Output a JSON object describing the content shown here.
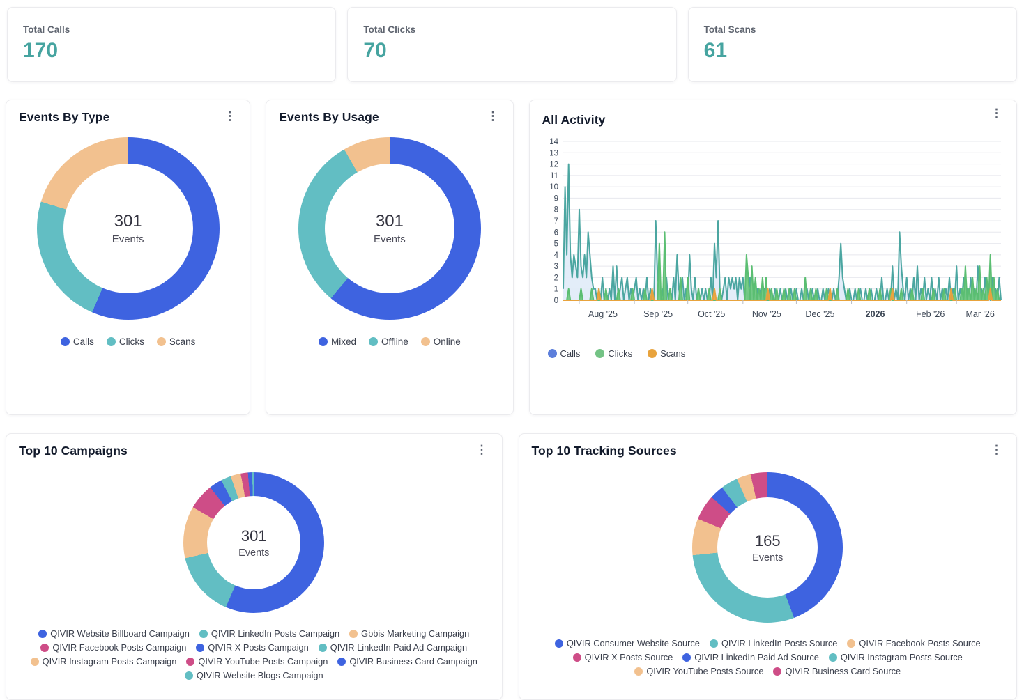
{
  "palette": {
    "blue": "#3e63e0",
    "teal": "#62bec3",
    "tan": "#f2c18f",
    "magenta": "#ce4d87",
    "accent_teal": "#46a4a0",
    "chart_teal": "#4ba6a1",
    "chart_green": "#72c884",
    "chart_orange": "#e8a33d",
    "calls_fill": "#e0ebf8",
    "legend_blue": "#5d7fdb"
  },
  "menu_icon": "⋮",
  "stat_cards": [
    {
      "label": "Total Calls",
      "value": "170"
    },
    {
      "label": "Total Clicks",
      "value": "70"
    },
    {
      "label": "Total Scans",
      "value": "61"
    }
  ],
  "events_by_type": {
    "title": "Events By Type",
    "center_value": "301",
    "center_label": "Events",
    "chart_data": {
      "type": "donut",
      "title": "Events By Type",
      "labels": [
        "Calls",
        "Clicks",
        "Scans"
      ],
      "values": [
        170,
        70,
        61
      ],
      "colors": [
        "#3e63e0",
        "#62bec3",
        "#f2c18f"
      ],
      "center_total": 301
    }
  },
  "events_by_usage": {
    "title": "Events By Usage",
    "center_value": "301",
    "center_label": "Events",
    "chart_data": {
      "type": "donut",
      "title": "Events By Usage",
      "labels": [
        "Mixed",
        "Offline",
        "Online"
      ],
      "values": [
        184,
        92,
        25
      ],
      "colors": [
        "#3e63e0",
        "#62bec3",
        "#f2c18f"
      ],
      "center_total": 301
    }
  },
  "all_activity": {
    "title": "All Activity",
    "chart_data": {
      "type": "area",
      "title": "All Activity",
      "ylim": [
        0,
        14
      ],
      "grid": true,
      "legend_position": "bottom-left",
      "x_tick_labels": [
        "Aug '25",
        "Sep '25",
        "Oct '25",
        "Nov '25",
        "Dec '25",
        "2026",
        "Feb '26",
        "Mar '26"
      ],
      "x_tick_bold_index": 5,
      "x_tick_days": [
        9,
        40,
        70,
        101,
        131,
        162,
        193,
        221
      ],
      "domain_days": 246,
      "series": [
        {
          "name": "Calls",
          "legend_color": "#5d7fdb",
          "stroke": "#4ba6a1",
          "fill": "#e0ebf8",
          "fill_opacity": 0.9,
          "points": [
            [
              0,
              1
            ],
            [
              1,
              10
            ],
            [
              2,
              4
            ],
            [
              3,
              12
            ],
            [
              4,
              4
            ],
            [
              5,
              2
            ],
            [
              6,
              4
            ],
            [
              7,
              3
            ],
            [
              8,
              2
            ],
            [
              9,
              8
            ],
            [
              10,
              3
            ],
            [
              11,
              2
            ],
            [
              12,
              4
            ],
            [
              13,
              2
            ],
            [
              14,
              6
            ],
            [
              15,
              4
            ],
            [
              16,
              2
            ],
            [
              17,
              1
            ],
            [
              18,
              1
            ],
            [
              20,
              1
            ],
            [
              22,
              2
            ],
            [
              24,
              1
            ],
            [
              26,
              1
            ],
            [
              28,
              3
            ],
            [
              30,
              3
            ],
            [
              32,
              1
            ],
            [
              33,
              2
            ],
            [
              35,
              1
            ],
            [
              36,
              2
            ],
            [
              38,
              1
            ],
            [
              40,
              1
            ],
            [
              41,
              2
            ],
            [
              43,
              1
            ],
            [
              45,
              1
            ],
            [
              47,
              2
            ],
            [
              49,
              1
            ],
            [
              52,
              7
            ],
            [
              53,
              2
            ],
            [
              54,
              1
            ],
            [
              56,
              1
            ],
            [
              58,
              2
            ],
            [
              60,
              1
            ],
            [
              62,
              2
            ],
            [
              64,
              4
            ],
            [
              65,
              1
            ],
            [
              67,
              2
            ],
            [
              69,
              1
            ],
            [
              71,
              4
            ],
            [
              72,
              1
            ],
            [
              74,
              2
            ],
            [
              76,
              1
            ],
            [
              78,
              1
            ],
            [
              80,
              1
            ],
            [
              83,
              2
            ],
            [
              85,
              5
            ],
            [
              86,
              2
            ],
            [
              87,
              7
            ],
            [
              88,
              1
            ],
            [
              90,
              1
            ],
            [
              91,
              2
            ],
            [
              93,
              2
            ],
            [
              94,
              1
            ],
            [
              95,
              2
            ],
            [
              96,
              1
            ],
            [
              97,
              2
            ],
            [
              99,
              2
            ],
            [
              100,
              1
            ],
            [
              101,
              2
            ],
            [
              103,
              1
            ],
            [
              105,
              2
            ],
            [
              107,
              1
            ],
            [
              109,
              1
            ],
            [
              111,
              1
            ],
            [
              113,
              1
            ],
            [
              116,
              1
            ],
            [
              119,
              1
            ],
            [
              122,
              1
            ],
            [
              125,
              1
            ],
            [
              128,
              1
            ],
            [
              131,
              1
            ],
            [
              134,
              1
            ],
            [
              137,
              1
            ],
            [
              140,
              1
            ],
            [
              143,
              1
            ],
            [
              146,
              1
            ],
            [
              149,
              1
            ],
            [
              152,
              1
            ],
            [
              155,
              2
            ],
            [
              156,
              5
            ],
            [
              157,
              2
            ],
            [
              158,
              1
            ],
            [
              161,
              1
            ],
            [
              164,
              1
            ],
            [
              167,
              1
            ],
            [
              170,
              1
            ],
            [
              173,
              1
            ],
            [
              176,
              1
            ],
            [
              179,
              2
            ],
            [
              182,
              1
            ],
            [
              185,
              3
            ],
            [
              187,
              1
            ],
            [
              189,
              6
            ],
            [
              190,
              3
            ],
            [
              191,
              1
            ],
            [
              193,
              2
            ],
            [
              195,
              1
            ],
            [
              197,
              2
            ],
            [
              199,
              3
            ],
            [
              201,
              1
            ],
            [
              203,
              2
            ],
            [
              205,
              1
            ],
            [
              207,
              2
            ],
            [
              209,
              1
            ],
            [
              211,
              2
            ],
            [
              213,
              1
            ],
            [
              215,
              1
            ],
            [
              217,
              2
            ],
            [
              219,
              1
            ],
            [
              221,
              3
            ],
            [
              223,
              1
            ],
            [
              225,
              2
            ],
            [
              227,
              1
            ],
            [
              229,
              2
            ],
            [
              231,
              1
            ],
            [
              233,
              3
            ],
            [
              235,
              1
            ],
            [
              237,
              2
            ],
            [
              239,
              1
            ],
            [
              241,
              2
            ],
            [
              243,
              1
            ],
            [
              245,
              2
            ]
          ]
        },
        {
          "name": "Clicks",
          "legend_color": "#74c385",
          "stroke": "#5bbe72",
          "fill": "#72c884",
          "fill_opacity": 0.95,
          "points": [
            [
              3,
              1
            ],
            [
              10,
              1
            ],
            [
              16,
              1
            ],
            [
              24,
              1
            ],
            [
              31,
              1
            ],
            [
              39,
              1
            ],
            [
              46,
              1
            ],
            [
              54,
              5
            ],
            [
              57,
              6
            ],
            [
              60,
              1
            ],
            [
              66,
              2
            ],
            [
              70,
              2
            ],
            [
              76,
              1
            ],
            [
              82,
              1
            ],
            [
              88,
              1
            ],
            [
              103,
              4
            ],
            [
              104,
              2
            ],
            [
              106,
              3
            ],
            [
              108,
              2
            ],
            [
              110,
              1
            ],
            [
              112,
              2
            ],
            [
              114,
              2
            ],
            [
              117,
              1
            ],
            [
              120,
              1
            ],
            [
              124,
              1
            ],
            [
              127,
              1
            ],
            [
              130,
              1
            ],
            [
              136,
              2
            ],
            [
              139,
              1
            ],
            [
              142,
              1
            ],
            [
              148,
              1
            ],
            [
              154,
              1
            ],
            [
              160,
              1
            ],
            [
              166,
              1
            ],
            [
              172,
              1
            ],
            [
              178,
              1
            ],
            [
              184,
              1
            ],
            [
              190,
              1
            ],
            [
              196,
              1
            ],
            [
              202,
              1
            ],
            [
              208,
              1
            ],
            [
              214,
              1
            ],
            [
              220,
              1
            ],
            [
              224,
              1
            ],
            [
              226,
              3
            ],
            [
              228,
              1
            ],
            [
              230,
              2
            ],
            [
              232,
              1
            ],
            [
              234,
              3
            ],
            [
              236,
              1
            ],
            [
              238,
              2
            ],
            [
              240,
              4
            ],
            [
              242,
              2
            ],
            [
              244,
              1
            ]
          ]
        },
        {
          "name": "Scans",
          "legend_color": "#e8a33d",
          "stroke": "#e8a33d",
          "fill": "#e8a33d",
          "fill_opacity": 0.9,
          "points": [
            [
              20,
              1
            ],
            [
              50,
              1
            ],
            [
              85,
              1
            ],
            [
              115,
              1
            ],
            [
              150,
              1
            ],
            [
              185,
              1
            ],
            [
              218,
              1
            ],
            [
              240,
              1
            ]
          ]
        }
      ]
    }
  },
  "top_campaigns": {
    "title": "Top 10 Campaigns",
    "center_value": "301",
    "center_label": "Events",
    "chart_data": {
      "type": "donut",
      "title": "Top 10 Campaigns",
      "center_total": 301,
      "labels": [
        "QIVIR Website Billboard Campaign",
        "QIVIR LinkedIn Posts Campaign",
        "Gbbis Marketing Campaign",
        "QIVIR Facebook Posts Campaign",
        "QIVIR X Posts Campaign",
        "QIVIR LinkedIn Paid Ad Campaign",
        "QIVIR Instagram Posts Campaign",
        "QIVIR YouTube Posts Campaign",
        "QIVIR Business Card Campaign",
        "QIVIR Website Blogs Campaign"
      ],
      "values": [
        170,
        45,
        36,
        18,
        9,
        7,
        7,
        5,
        3,
        1
      ],
      "colors": [
        "#3e63e0",
        "#62bec3",
        "#f2c18f",
        "#ce4d87",
        "#3e63e0",
        "#62bec3",
        "#f2c18f",
        "#ce4d87",
        "#3e63e0",
        "#62bec3"
      ]
    }
  },
  "top_sources": {
    "title": "Top 10 Tracking Sources",
    "center_value": "165",
    "center_label": "Events",
    "chart_data": {
      "type": "donut",
      "title": "Top 10 Tracking Sources",
      "center_total": 165,
      "labels": [
        "QIVIR Consumer Website Source",
        "QIVIR LinkedIn Posts Source",
        "QIVIR Facebook Posts Source",
        "QIVIR X Posts Source",
        "QIVIR LinkedIn Paid Ad Source",
        "QIVIR Instagram Posts Source",
        "QIVIR YouTube Posts Source",
        "QIVIR Business Card Source"
      ],
      "values": [
        73,
        48,
        13,
        9,
        5,
        6,
        5,
        6
      ],
      "colors": [
        "#3e63e0",
        "#62bec3",
        "#f2c18f",
        "#ce4d87",
        "#3e63e0",
        "#62bec3",
        "#f2c18f",
        "#ce4d87"
      ]
    }
  }
}
